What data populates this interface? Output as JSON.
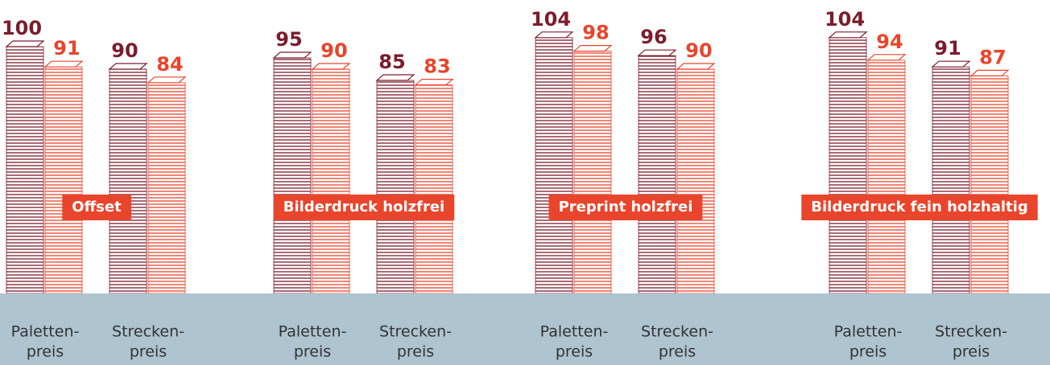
{
  "chart_data": [
    {
      "type": "bar",
      "title": "Offset",
      "categories": [
        [
          "Paletten-",
          "preis"
        ],
        [
          "Strecken-",
          "preis"
        ]
      ],
      "series": [
        {
          "color": "#7b1c2c",
          "values": [
            100,
            90
          ]
        },
        {
          "color": "#e8452c",
          "values": [
            91,
            84
          ]
        }
      ]
    },
    {
      "type": "bar",
      "title": "Bilderdruck holzfrei",
      "categories": [
        [
          "Paletten-",
          "preis"
        ],
        [
          "Strecken-",
          "preis"
        ]
      ],
      "series": [
        {
          "color": "#7b1c2c",
          "values": [
            95,
            85
          ]
        },
        {
          "color": "#e8452c",
          "values": [
            90,
            83
          ]
        }
      ]
    },
    {
      "type": "bar",
      "title": "Preprint holzfrei",
      "categories": [
        [
          "Paletten-",
          "preis"
        ],
        [
          "Strecken-",
          "preis"
        ]
      ],
      "series": [
        {
          "color": "#7b1c2c",
          "values": [
            104,
            96
          ]
        },
        {
          "color": "#e8452c",
          "values": [
            98,
            90
          ]
        }
      ]
    },
    {
      "type": "bar",
      "title": "Bilderdruck fein holzhaltig",
      "categories": [
        [
          "Paletten-",
          "preis"
        ],
        [
          "Strecken-",
          "preis"
        ]
      ],
      "series": [
        {
          "color": "#7b1c2c",
          "values": [
            104,
            91
          ]
        },
        {
          "color": "#e8452c",
          "values": [
            94,
            87
          ]
        }
      ]
    }
  ]
}
